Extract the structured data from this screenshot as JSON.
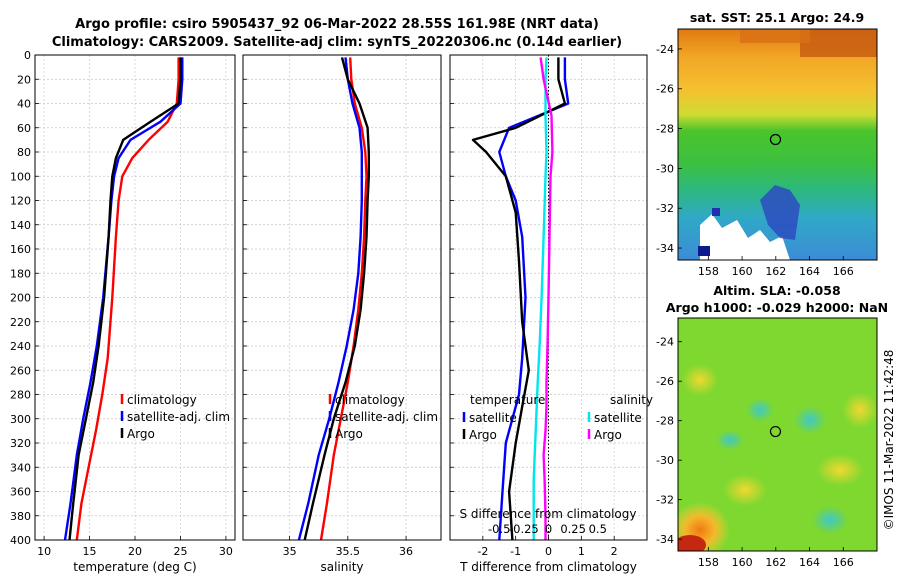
{
  "title": {
    "line1": "Argo profile: csiro 5905437_92 06-Mar-2022 28.55S 161.98E (NRT data)",
    "line2": "Climatology: CARS2009. Satellite-adj clim: synTS_20220306.nc (0.14d earlier)"
  },
  "colors": {
    "climatology": "#ff0000",
    "satellite": "#0000ff",
    "argo": "#000000",
    "sal_satellite": "#00e5ee",
    "sal_argo": "#ff00ff"
  },
  "chart_data": [
    {
      "type": "line",
      "id": "temperature",
      "xlabel": "temperature (deg C)",
      "ylabel": "",
      "xlim": [
        9,
        31
      ],
      "ylim": [
        400,
        0
      ],
      "xticks": [
        10,
        15,
        20,
        25,
        30
      ],
      "xtick_labels": [
        "10",
        "15",
        "20",
        "25",
        "30"
      ],
      "yticks": [
        0,
        20,
        40,
        60,
        80,
        100,
        120,
        140,
        160,
        180,
        200,
        220,
        240,
        260,
        280,
        300,
        320,
        340,
        360,
        380,
        400
      ],
      "ytick_labels": [
        "0",
        "20",
        "40",
        "60",
        "80",
        "100",
        "120",
        "140",
        "160",
        "180",
        "200",
        "220",
        "240",
        "260",
        "280",
        "300",
        "320",
        "340",
        "360",
        "380",
        "400"
      ],
      "grid": true,
      "legend": [
        "climatology",
        "satellite-adj. clim",
        "Argo"
      ],
      "legend_location": "lower-right",
      "series": [
        {
          "name": "climatology",
          "color": "#ff0000",
          "x": [
            24.8,
            24.8,
            24.6,
            23.6,
            21.5,
            19.7,
            18.6,
            18.2,
            17.9,
            17.5,
            17.0,
            16.4,
            15.7,
            14.9,
            14.1,
            13.6
          ],
          "y": [
            2,
            20,
            40,
            55,
            70,
            85,
            100,
            120,
            150,
            200,
            250,
            280,
            310,
            340,
            370,
            400
          ]
        },
        {
          "name": "satellite-adj. clim",
          "color": "#0000ff",
          "x": [
            25.2,
            25.2,
            25.0,
            22.8,
            19.5,
            18.2,
            17.7,
            17.4,
            17.1,
            16.5,
            15.8,
            15.1,
            14.3,
            13.6,
            12.9,
            12.3
          ],
          "y": [
            2,
            20,
            40,
            55,
            70,
            85,
            100,
            120,
            150,
            200,
            240,
            270,
            300,
            330,
            370,
            400
          ]
        },
        {
          "name": "Argo",
          "color": "#000000",
          "x": [
            25.0,
            25.0,
            24.8,
            21.7,
            18.7,
            17.9,
            17.5,
            17.3,
            17.1,
            16.6,
            16.0,
            15.4,
            14.6,
            13.8,
            13.2,
            12.8
          ],
          "y": [
            2,
            20,
            40,
            55,
            70,
            85,
            100,
            120,
            150,
            200,
            240,
            270,
            300,
            330,
            370,
            400
          ]
        }
      ]
    },
    {
      "type": "line",
      "id": "salinity",
      "xlabel": "salinity",
      "xlim": [
        34.6,
        36.3
      ],
      "ylim": [
        400,
        0
      ],
      "xticks": [
        35,
        35.5,
        36
      ],
      "xtick_labels": [
        "35",
        "35.5",
        "36"
      ],
      "grid": true,
      "legend": [
        "climatology",
        "satellite-adj. clim",
        "Argo"
      ],
      "legend_location": "lower-right",
      "series": [
        {
          "name": "climatology",
          "color": "#ff0000",
          "x": [
            35.52,
            35.53,
            35.56,
            35.62,
            35.65,
            35.66,
            35.65,
            35.64,
            35.62,
            35.59,
            35.55,
            35.5,
            35.44,
            35.38,
            35.32,
            35.27
          ],
          "y": [
            2,
            20,
            40,
            60,
            80,
            100,
            120,
            150,
            180,
            210,
            240,
            270,
            300,
            330,
            370,
            400
          ]
        },
        {
          "name": "satellite-adj. clim",
          "color": "#0000ff",
          "x": [
            35.48,
            35.5,
            35.54,
            35.6,
            35.62,
            35.62,
            35.62,
            35.61,
            35.59,
            35.55,
            35.49,
            35.42,
            35.34,
            35.25,
            35.16,
            35.08
          ],
          "y": [
            2,
            20,
            40,
            60,
            80,
            100,
            120,
            150,
            180,
            210,
            240,
            270,
            300,
            330,
            370,
            400
          ]
        },
        {
          "name": "Argo",
          "color": "#000000",
          "x": [
            35.45,
            35.5,
            35.6,
            35.67,
            35.68,
            35.68,
            35.67,
            35.66,
            35.64,
            35.61,
            35.56,
            35.48,
            35.38,
            35.3,
            35.2,
            35.13
          ],
          "y": [
            2,
            20,
            40,
            60,
            80,
            100,
            120,
            150,
            180,
            210,
            240,
            270,
            300,
            330,
            370,
            400
          ]
        }
      ]
    },
    {
      "type": "line",
      "id": "difference",
      "xlabel": "T difference from climatology",
      "xlabel_top": "S difference from climatology",
      "xlim": [
        -3,
        3
      ],
      "ylim": [
        400,
        0
      ],
      "xticks": [
        -2,
        -1,
        0,
        1,
        2
      ],
      "xtick_labels": [
        "-2",
        "-1",
        "0",
        "1",
        "2"
      ],
      "s_xticks": [
        -0.5,
        -0.25,
        0,
        0.25,
        0.5
      ],
      "s_xtick_labels": [
        "-0.5",
        "-0.25",
        "0",
        "0.25",
        "0.5"
      ],
      "zero_line": "dotted",
      "legend_temperature_title": "temperature",
      "legend_salinity_title": "salinity",
      "legend_temperature": [
        "satellite",
        "Argo"
      ],
      "legend_salinity": [
        "satellite",
        "Argo"
      ],
      "series": [
        {
          "name": "T satellite",
          "color": "#0000ff",
          "x": [
            0.5,
            0.5,
            0.6,
            -1.2,
            -1.5,
            -1.3,
            -1.0,
            -0.8,
            -0.7,
            -0.8,
            -0.9,
            -1.1,
            -1.3,
            -1.4,
            -1.5
          ],
          "y": [
            2,
            20,
            40,
            60,
            80,
            100,
            120,
            150,
            200,
            250,
            280,
            300,
            320,
            360,
            400
          ]
        },
        {
          "name": "T Argo",
          "color": "#000000",
          "x": [
            0.3,
            0.3,
            0.5,
            -1.0,
            -2.3,
            -1.9,
            -1.3,
            -1.0,
            -0.9,
            -0.8,
            -0.6,
            -0.8,
            -1.0,
            -1.2,
            -1.1
          ],
          "y": [
            2,
            20,
            40,
            60,
            70,
            80,
            100,
            130,
            170,
            220,
            260,
            290,
            320,
            360,
            400
          ]
        },
        {
          "name": "S satellite",
          "color": "#00e5ee",
          "x": [
            -0.02,
            -0.03,
            -0.03,
            -0.02,
            -0.03,
            -0.05,
            -0.07,
            -0.09,
            -0.11,
            -0.12,
            -0.13,
            -0.14,
            -0.15,
            -0.15,
            -0.15
          ],
          "y": [
            2,
            20,
            50,
            80,
            100,
            150,
            200,
            240,
            270,
            290,
            310,
            330,
            350,
            380,
            400
          ]
        },
        {
          "name": "S Argo",
          "color": "#ff00ff",
          "x": [
            -0.08,
            -0.05,
            0.03,
            0.04,
            0.02,
            0.01,
            0.0,
            -0.01,
            -0.02,
            -0.02,
            -0.03,
            -0.05,
            -0.04,
            -0.03,
            -0.03
          ],
          "y": [
            2,
            20,
            50,
            80,
            100,
            150,
            200,
            240,
            270,
            290,
            310,
            330,
            350,
            380,
            400
          ]
        }
      ]
    },
    {
      "type": "heatmap",
      "id": "sst_map",
      "title": "sat. SST: 25.1 Argo: 24.9",
      "xlim": [
        156.2,
        168
      ],
      "ylim": [
        -34.6,
        -23
      ],
      "xticks": [
        158,
        160,
        162,
        164,
        166
      ],
      "xtick_labels": [
        "158",
        "160",
        "162",
        "164",
        "166"
      ],
      "yticks": [
        -24,
        -26,
        -28,
        -30,
        -32,
        -34
      ],
      "ytick_labels": [
        "-24",
        "-26",
        "-28",
        "-30",
        "-32",
        "-34"
      ],
      "marker": {
        "lon": 161.98,
        "lat": -28.55
      }
    },
    {
      "type": "heatmap",
      "id": "sla_map",
      "title_line1": "Altim. SLA: -0.058",
      "title_line2": "Argo h1000: -0.029 h2000: NaN",
      "xlim": [
        156.2,
        168
      ],
      "ylim": [
        -34.6,
        -22.8
      ],
      "xticks": [
        158,
        160,
        162,
        164,
        166
      ],
      "xtick_labels": [
        "158",
        "160",
        "162",
        "164",
        "166"
      ],
      "yticks": [
        -24,
        -26,
        -28,
        -30,
        -32,
        -34
      ],
      "ytick_labels": [
        "-24",
        "-26",
        "-28",
        "-30",
        "-32",
        "-34"
      ],
      "marker": {
        "lon": 161.98,
        "lat": -28.55
      }
    }
  ],
  "footer": {
    "credit": "©IMOS 11-Mar-2022 11:42:48"
  }
}
